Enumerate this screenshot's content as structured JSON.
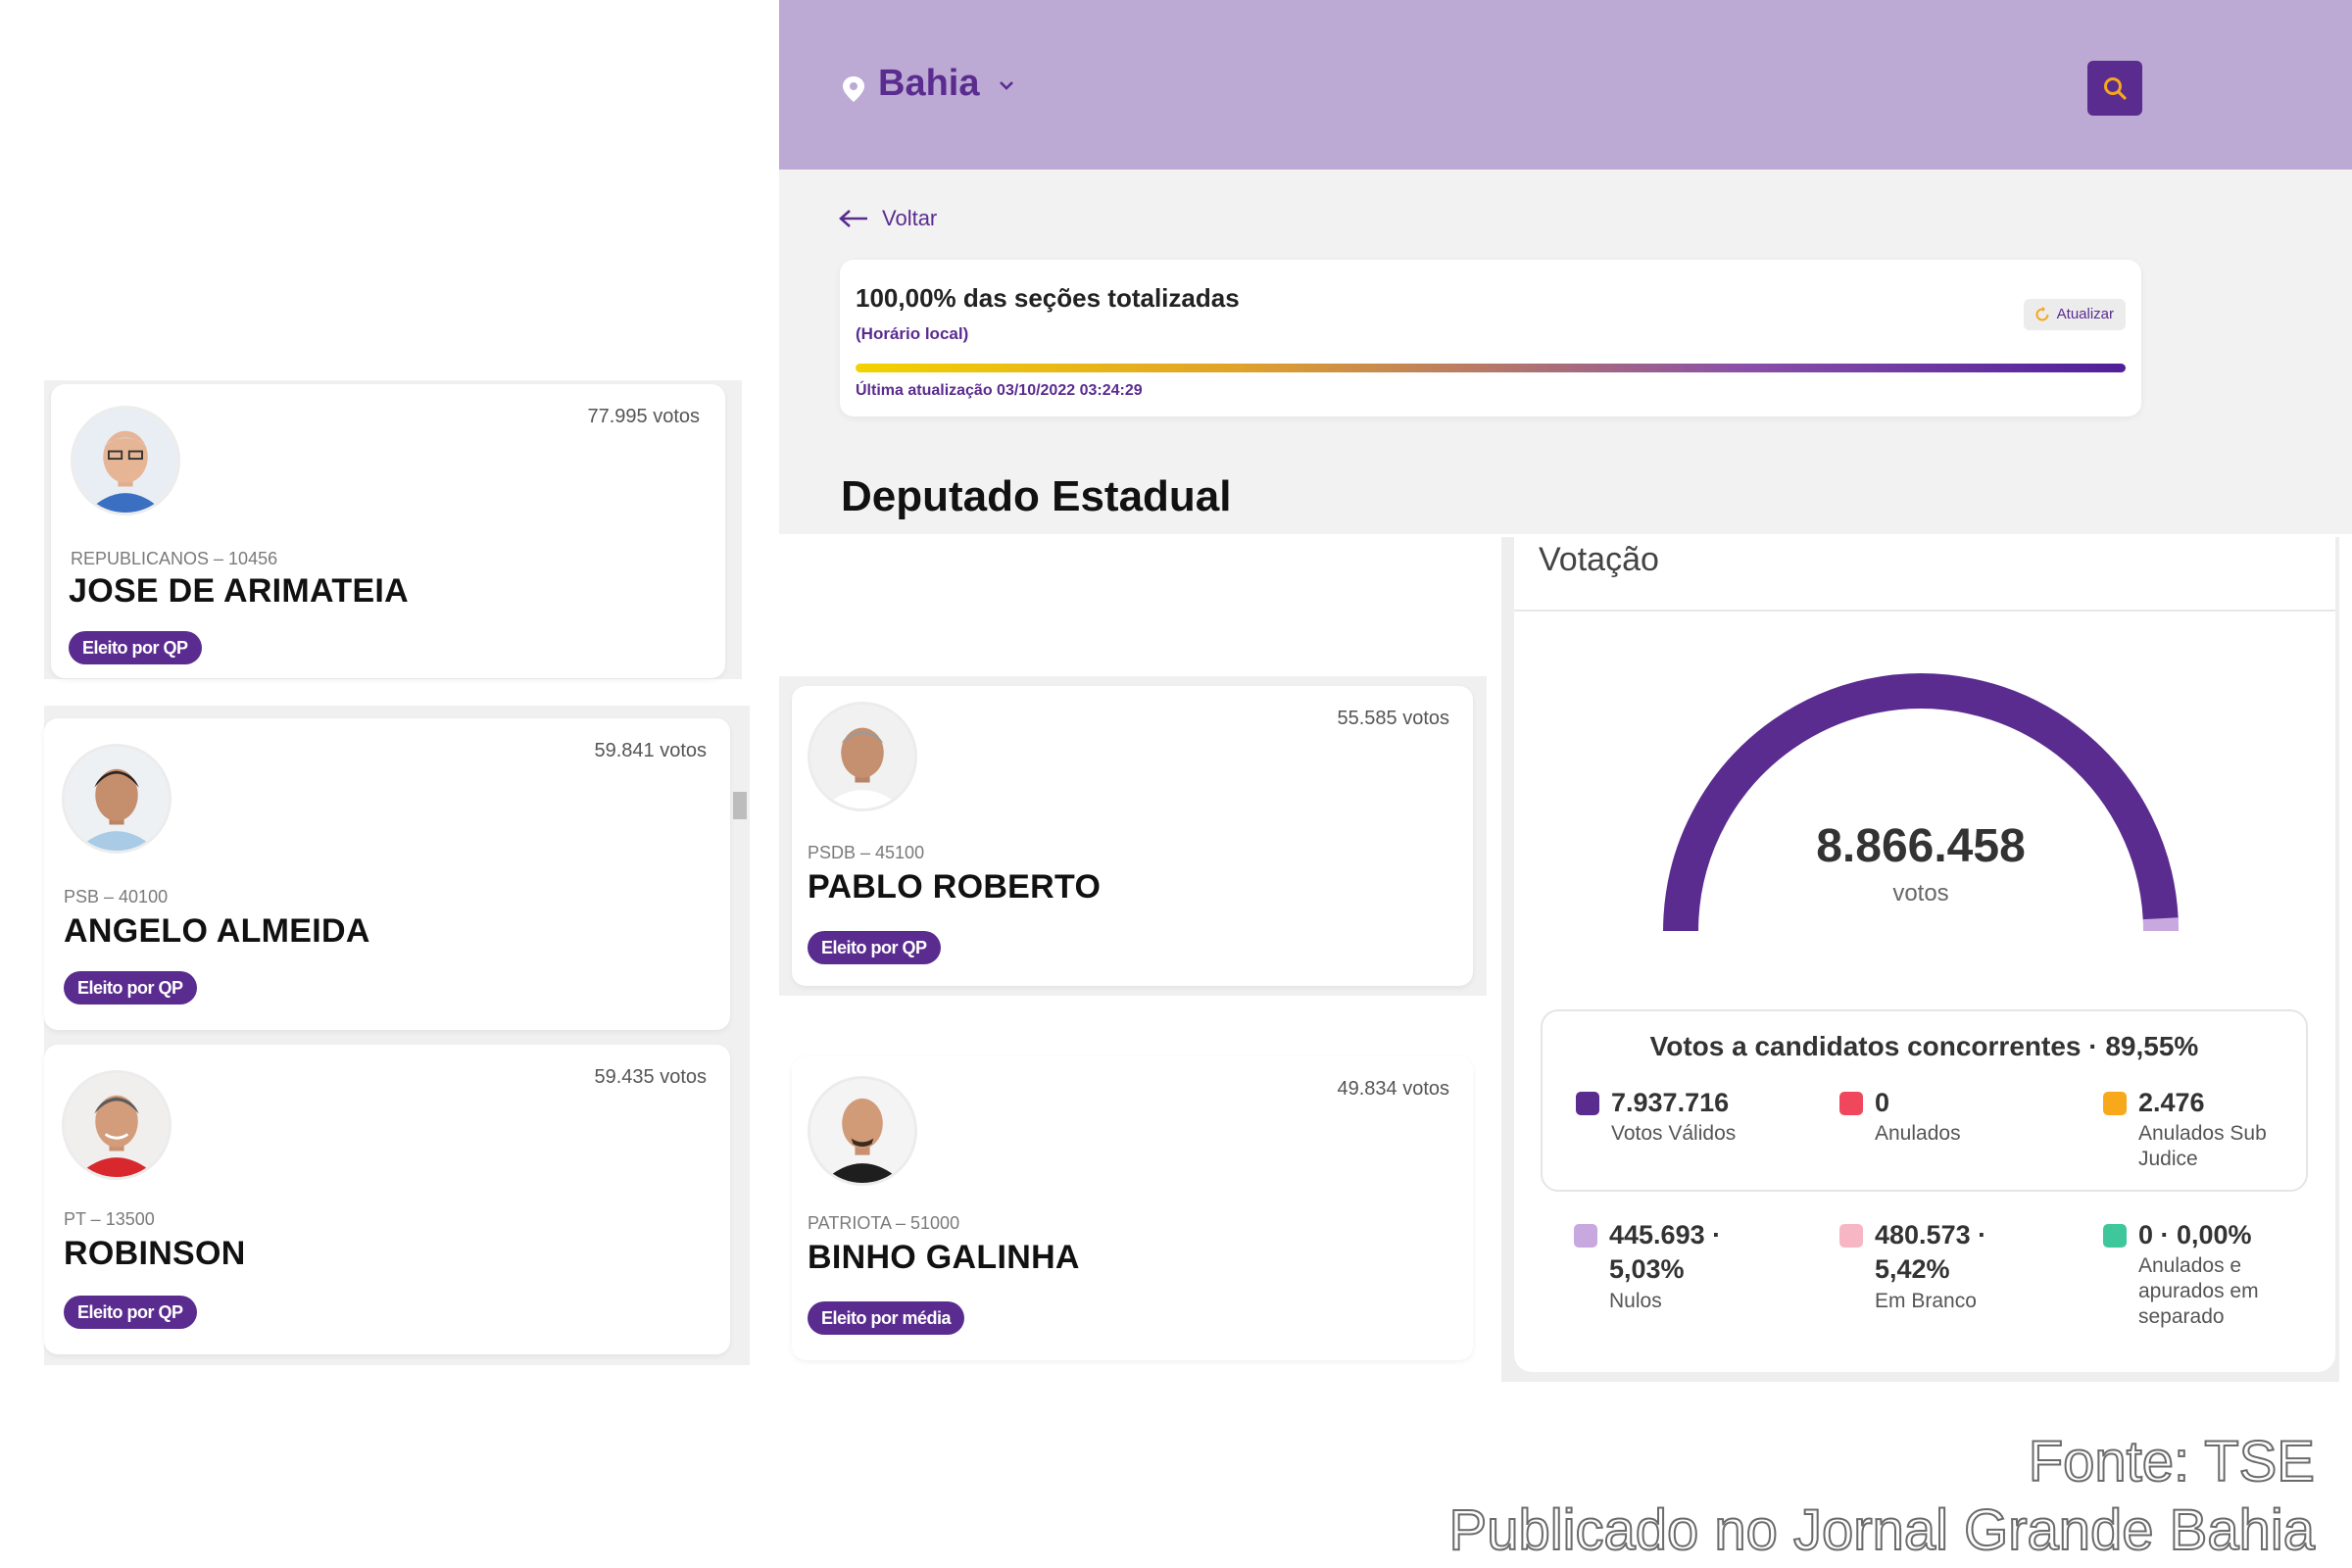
{
  "header": {
    "location": "Bahia"
  },
  "nav": {
    "back_label": "Voltar"
  },
  "status": {
    "title": "100,00% das seções totalizadas",
    "subtitle": "(Horário local)",
    "refresh_label": "Atualizar",
    "progress_fraction": 1.0,
    "updated": "Última atualização 03/10/2022 03:24:29"
  },
  "section_title": "Deputado Estadual",
  "candidates": [
    {
      "votes": "77.995 votos",
      "party": "REPUBLICANOS – 10456",
      "name": "JOSE DE ARIMATEIA",
      "badge": "Eleito por QP"
    },
    {
      "votes": "59.841 votos",
      "party": "PSB – 40100",
      "name": "ANGELO ALMEIDA",
      "badge": "Eleito por QP"
    },
    {
      "votes": "59.435 votos",
      "party": "PT – 13500",
      "name": "ROBINSON",
      "badge": "Eleito por QP"
    },
    {
      "votes": "55.585 votos",
      "party": "PSDB – 45100",
      "name": "PABLO ROBERTO",
      "badge": "Eleito por QP"
    },
    {
      "votes": "49.834 votos",
      "party": "PATRIOTA – 51000",
      "name": "BINHO GALINHA",
      "badge": "Eleito por média"
    }
  ],
  "votacao": {
    "title": "Votação",
    "total": "8.866.458",
    "unit": "votos",
    "gauge_fractions": {
      "validos": 0.8955,
      "nulos": 0.0503,
      "branco": 0.0542
    },
    "concorrentes_title": "Votos a candidatos concorrentes · 89,55%",
    "stats": [
      {
        "value": "7.937.716",
        "label": "Votos Válidos",
        "color": "#5a2c8f"
      },
      {
        "value": "0",
        "label": "Anulados",
        "color": "#f0475c"
      },
      {
        "value": "2.476",
        "label": "Anulados Sub Judice",
        "color": "#f7a81b"
      },
      {
        "value": "445.693 · 5,03%",
        "label": "Nulos",
        "color": "#c7a8df"
      },
      {
        "value": "480.573 · 5,42%",
        "label": "Em Branco",
        "color": "#f7b6c4"
      },
      {
        "value": "0 · 0,00%",
        "label": "Anulados e apurados em separado",
        "color": "#3ec79a"
      }
    ]
  },
  "footer": {
    "source": "Fonte: TSE",
    "published": "Publicado no Jornal Grande Bahia"
  },
  "icons": {
    "location": "map-pin-icon",
    "dropdown": "chevron-down-icon",
    "search": "search-icon",
    "back": "arrow-left-icon",
    "refresh": "refresh-icon"
  }
}
